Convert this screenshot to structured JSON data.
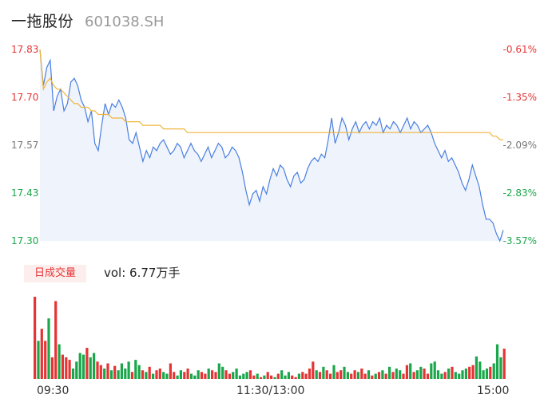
{
  "header": {
    "stock_name": "一拖股份",
    "stock_code": "601038.SH"
  },
  "price_axis": {
    "labels": [
      "17.83",
      "17.70",
      "17.57",
      "17.43",
      "17.30"
    ],
    "pct_labels": [
      "-0.61%",
      "-1.35%",
      "-2.09%",
      "-2.83%",
      "-3.57%"
    ],
    "colors": [
      "red",
      "red",
      "gray",
      "green",
      "green"
    ]
  },
  "volume_panel": {
    "tab_label": "日成交量",
    "vol_text": "vol: 6.77万手"
  },
  "time_axis": {
    "start": "09:30",
    "mid": "11:30/13:00",
    "end": "15:00"
  },
  "colors": {
    "price_line": "#4a7fe0",
    "avg_line": "#f0b43c",
    "up": "#e63434",
    "down": "#1aa64a",
    "area_fill": "#eef3fc"
  },
  "chart_data": {
    "type": "line",
    "ylim": [
      17.3,
      17.83
    ],
    "series": [
      {
        "values": [
          17.83,
          17.73,
          17.78,
          17.8,
          17.66,
          17.7,
          17.72,
          17.66,
          17.68,
          17.74,
          17.75,
          17.73,
          17.69,
          17.67,
          17.63,
          17.66,
          17.57,
          17.55,
          17.62,
          17.68,
          17.65,
          17.68,
          17.67,
          17.69,
          17.67,
          17.64,
          17.58,
          17.57,
          17.6,
          17.56,
          17.52,
          17.55,
          17.53,
          17.56,
          17.55,
          17.57,
          17.58,
          17.56,
          17.54,
          17.55,
          17.57,
          17.56,
          17.53,
          17.55,
          17.57,
          17.55,
          17.54,
          17.52,
          17.54,
          17.56,
          17.53,
          17.55,
          17.57,
          17.56,
          17.53,
          17.54,
          17.56,
          17.55,
          17.53,
          17.49,
          17.44,
          17.4,
          17.43,
          17.44,
          17.41,
          17.45,
          17.43,
          17.47,
          17.5,
          17.48,
          17.51,
          17.5,
          17.47,
          17.45,
          17.48,
          17.49,
          17.46,
          17.47,
          17.5,
          17.52,
          17.53,
          17.52,
          17.54,
          17.53,
          17.58,
          17.64,
          17.57,
          17.6,
          17.64,
          17.62,
          17.58,
          17.61,
          17.63,
          17.6,
          17.62,
          17.63,
          17.61,
          17.63,
          17.62,
          17.64,
          17.6,
          17.62,
          17.61,
          17.63,
          17.62,
          17.6,
          17.62,
          17.64,
          17.61,
          17.63,
          17.62,
          17.6,
          17.61,
          17.62,
          17.6,
          17.57,
          17.55,
          17.53,
          17.55,
          17.52,
          17.53,
          17.51,
          17.49,
          17.46,
          17.44,
          17.47,
          17.51,
          17.48,
          17.45,
          17.4,
          17.36,
          17.36,
          17.35,
          17.32,
          17.3,
          17.33
        ]
      },
      {
        "values": [
          17.83,
          17.72,
          17.74,
          17.75,
          17.73,
          17.72,
          17.72,
          17.71,
          17.7,
          17.69,
          17.68,
          17.68,
          17.67,
          17.67,
          17.67,
          17.66,
          17.66,
          17.65,
          17.65,
          17.65,
          17.65,
          17.64,
          17.64,
          17.64,
          17.64,
          17.63,
          17.63,
          17.63,
          17.63,
          17.63,
          17.62,
          17.62,
          17.62,
          17.62,
          17.62,
          17.62,
          17.61,
          17.61,
          17.61,
          17.61,
          17.61,
          17.61,
          17.61,
          17.6,
          17.6,
          17.6,
          17.6,
          17.6,
          17.6,
          17.6,
          17.6,
          17.6,
          17.6,
          17.6,
          17.6,
          17.6,
          17.6,
          17.6,
          17.6,
          17.6,
          17.6,
          17.6,
          17.6,
          17.6,
          17.6,
          17.6,
          17.6,
          17.6,
          17.6,
          17.6,
          17.6,
          17.6,
          17.6,
          17.6,
          17.6,
          17.6,
          17.6,
          17.6,
          17.6,
          17.6,
          17.6,
          17.6,
          17.6,
          17.6,
          17.6,
          17.6,
          17.6,
          17.6,
          17.6,
          17.6,
          17.6,
          17.6,
          17.6,
          17.6,
          17.6,
          17.6,
          17.6,
          17.6,
          17.6,
          17.6,
          17.6,
          17.6,
          17.6,
          17.6,
          17.6,
          17.6,
          17.6,
          17.6,
          17.6,
          17.6,
          17.6,
          17.6,
          17.6,
          17.6,
          17.6,
          17.6,
          17.6,
          17.6,
          17.6,
          17.6,
          17.6,
          17.6,
          17.6,
          17.6,
          17.6,
          17.6,
          17.6,
          17.6,
          17.6,
          17.6,
          17.6,
          17.6,
          17.59,
          17.59,
          17.58,
          17.58
        ]
      }
    ],
    "volume": [
      95,
      44,
      58,
      44,
      70,
      25,
      90,
      40,
      28,
      25,
      22,
      12,
      20,
      30,
      28,
      36,
      25,
      30,
      20,
      16,
      12,
      18,
      10,
      15,
      10,
      18,
      12,
      20,
      8,
      22,
      16,
      10,
      8,
      14,
      6,
      10,
      12,
      8,
      6,
      18,
      8,
      4,
      10,
      8,
      12,
      6,
      4,
      10,
      8,
      6,
      12,
      10,
      8,
      18,
      14,
      10,
      6,
      8,
      12,
      4,
      6,
      8,
      10,
      4,
      6,
      2,
      4,
      8,
      4,
      2,
      6,
      10,
      4,
      8,
      4,
      2,
      6,
      8,
      6,
      12,
      20,
      10,
      8,
      14,
      10,
      6,
      16,
      8,
      10,
      14,
      8,
      6,
      10,
      8,
      12,
      6,
      10,
      4,
      6,
      8,
      10,
      6,
      14,
      8,
      12,
      10,
      6,
      16,
      18,
      8,
      10,
      14,
      12,
      6,
      18,
      20,
      10,
      6,
      8,
      12,
      14,
      8,
      6,
      10,
      12,
      14,
      16,
      26,
      20,
      10,
      12,
      14,
      18,
      40,
      25,
      35
    ]
  }
}
